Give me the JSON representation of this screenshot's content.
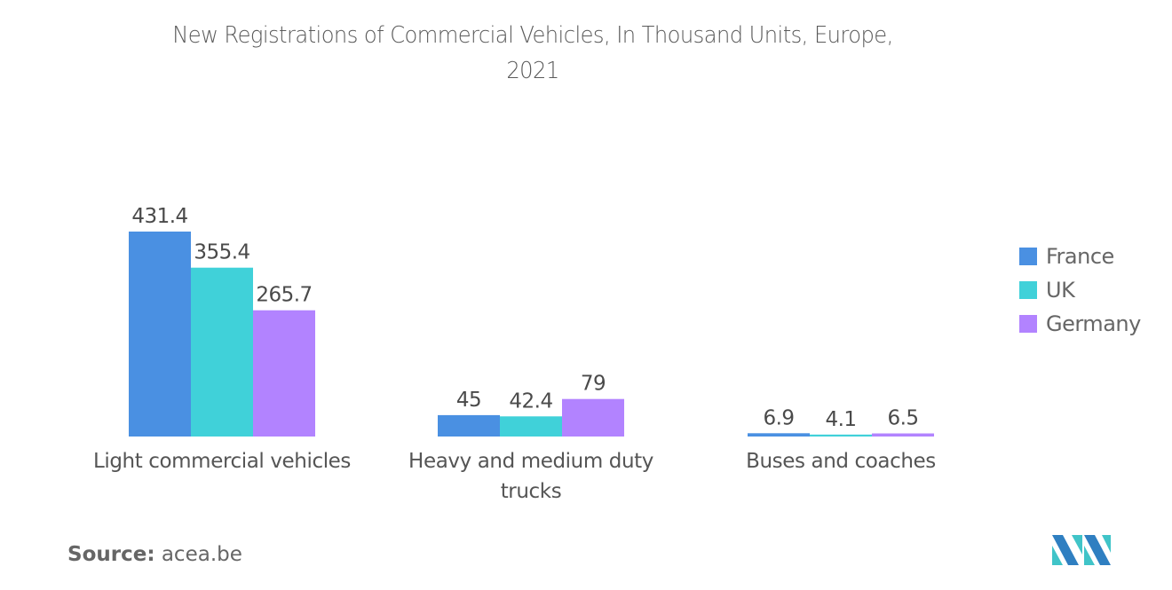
{
  "chart_data": {
    "type": "bar",
    "title": "New Registrations of Commercial Vehicles, In Thousand Units, Europe, 2021",
    "title_lines": [
      "New Registrations of Commercial Vehicles, In Thousand Units, Europe,",
      "2021"
    ],
    "categories": [
      "Light commercial vehicles",
      "Heavy and medium duty trucks",
      "Buses and coaches"
    ],
    "category_lines": [
      [
        "Light commercial vehicles"
      ],
      [
        "Heavy and medium duty",
        "trucks"
      ],
      [
        "Buses and coaches"
      ]
    ],
    "series": [
      {
        "name": "France",
        "color": "#4a90e2",
        "values": [
          431.4,
          45,
          6.9
        ]
      },
      {
        "name": "UK",
        "color": "#40d1d9",
        "values": [
          355.4,
          42.4,
          4.1
        ]
      },
      {
        "name": "Germany",
        "color": "#b283ff",
        "values": [
          265.7,
          79,
          6.5
        ]
      }
    ],
    "value_labels": [
      [
        "431.4",
        "45",
        "6.9"
      ],
      [
        "355.4",
        "42.4",
        "4.1"
      ],
      [
        "265.7",
        "79",
        "6.5"
      ]
    ],
    "xlabel": "",
    "ylabel": "",
    "ylim": [
      0,
      431.4
    ],
    "grid": false,
    "y_axis_visible": false,
    "legend_position": "right"
  },
  "source": {
    "label": "Source:",
    "value": "acea.be"
  },
  "logo": {
    "name": "Mordor Intelligence logo",
    "colors": [
      "#2f7fc1",
      "#40c4c8"
    ]
  }
}
